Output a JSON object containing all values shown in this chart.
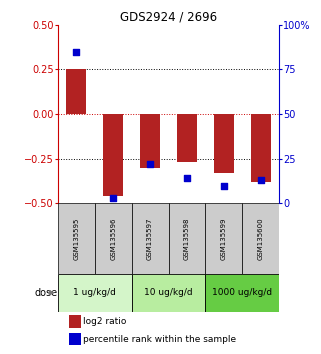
{
  "title": "GDS2924 / 2696",
  "samples": [
    "GSM135595",
    "GSM135596",
    "GSM135597",
    "GSM135598",
    "GSM135599",
    "GSM135600"
  ],
  "log2_ratios": [
    0.25,
    -0.46,
    -0.3,
    -0.27,
    -0.33,
    -0.38
  ],
  "percentile_ranks": [
    85,
    3,
    22,
    14,
    10,
    13
  ],
  "dose_groups": [
    {
      "label": "1 ug/kg/d",
      "samples": [
        0,
        1
      ],
      "color": "#d4f5c9"
    },
    {
      "label": "10 ug/kg/d",
      "samples": [
        2,
        3
      ],
      "color": "#b8eda0"
    },
    {
      "label": "1000 ug/kg/d",
      "samples": [
        4,
        5
      ],
      "color": "#66cc44"
    }
  ],
  "bar_color": "#b22222",
  "dot_color": "#0000cd",
  "ylim_left": [
    -0.5,
    0.5
  ],
  "ylim_right": [
    0,
    100
  ],
  "yticks_left": [
    -0.5,
    -0.25,
    0,
    0.25,
    0.5
  ],
  "yticks_right": [
    0,
    25,
    50,
    75,
    100
  ],
  "hlines": [
    0.25,
    0.0,
    -0.25
  ],
  "hline_colors": [
    "black",
    "#cc0000",
    "black"
  ],
  "hline_styles": [
    "dotted",
    "dotted",
    "dotted"
  ],
  "bar_width": 0.55,
  "dot_size": 22,
  "label_color_left": "#cc0000",
  "label_color_right": "#0000cc",
  "legend_bar_label": "log2 ratio",
  "legend_dot_label": "percentile rank within the sample",
  "sample_box_color": "#cccccc",
  "fig_bg": "#ffffff"
}
